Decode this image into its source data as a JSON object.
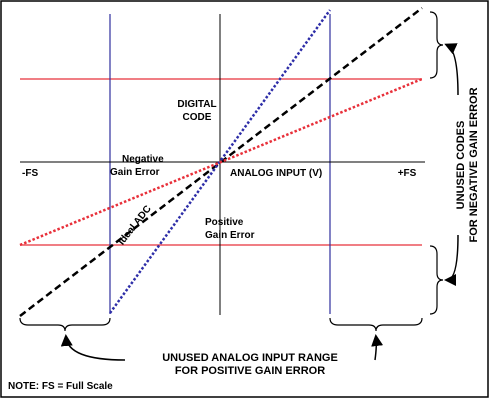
{
  "labels": {
    "digital_code": [
      "DIGITAL",
      "CODE"
    ],
    "minus_fs": "-FS",
    "plus_fs": "+FS",
    "analog_input": "ANALOG INPUT (V)",
    "negative_gain_error": [
      "Negative",
      "Gain Error"
    ],
    "ideal_adc": "Ideal ADC",
    "positive_gain_error": [
      "Positive",
      "Gain Error"
    ],
    "unused_codes": [
      "UNUSED CODES",
      "FOR NEGATIVE GAIN ERROR"
    ],
    "unused_range": [
      "UNUSED ANALOG INPUT RANGE",
      "FOR POSITIVE GAIN ERROR"
    ],
    "note": "NOTE: FS = Full Scale"
  }
}
